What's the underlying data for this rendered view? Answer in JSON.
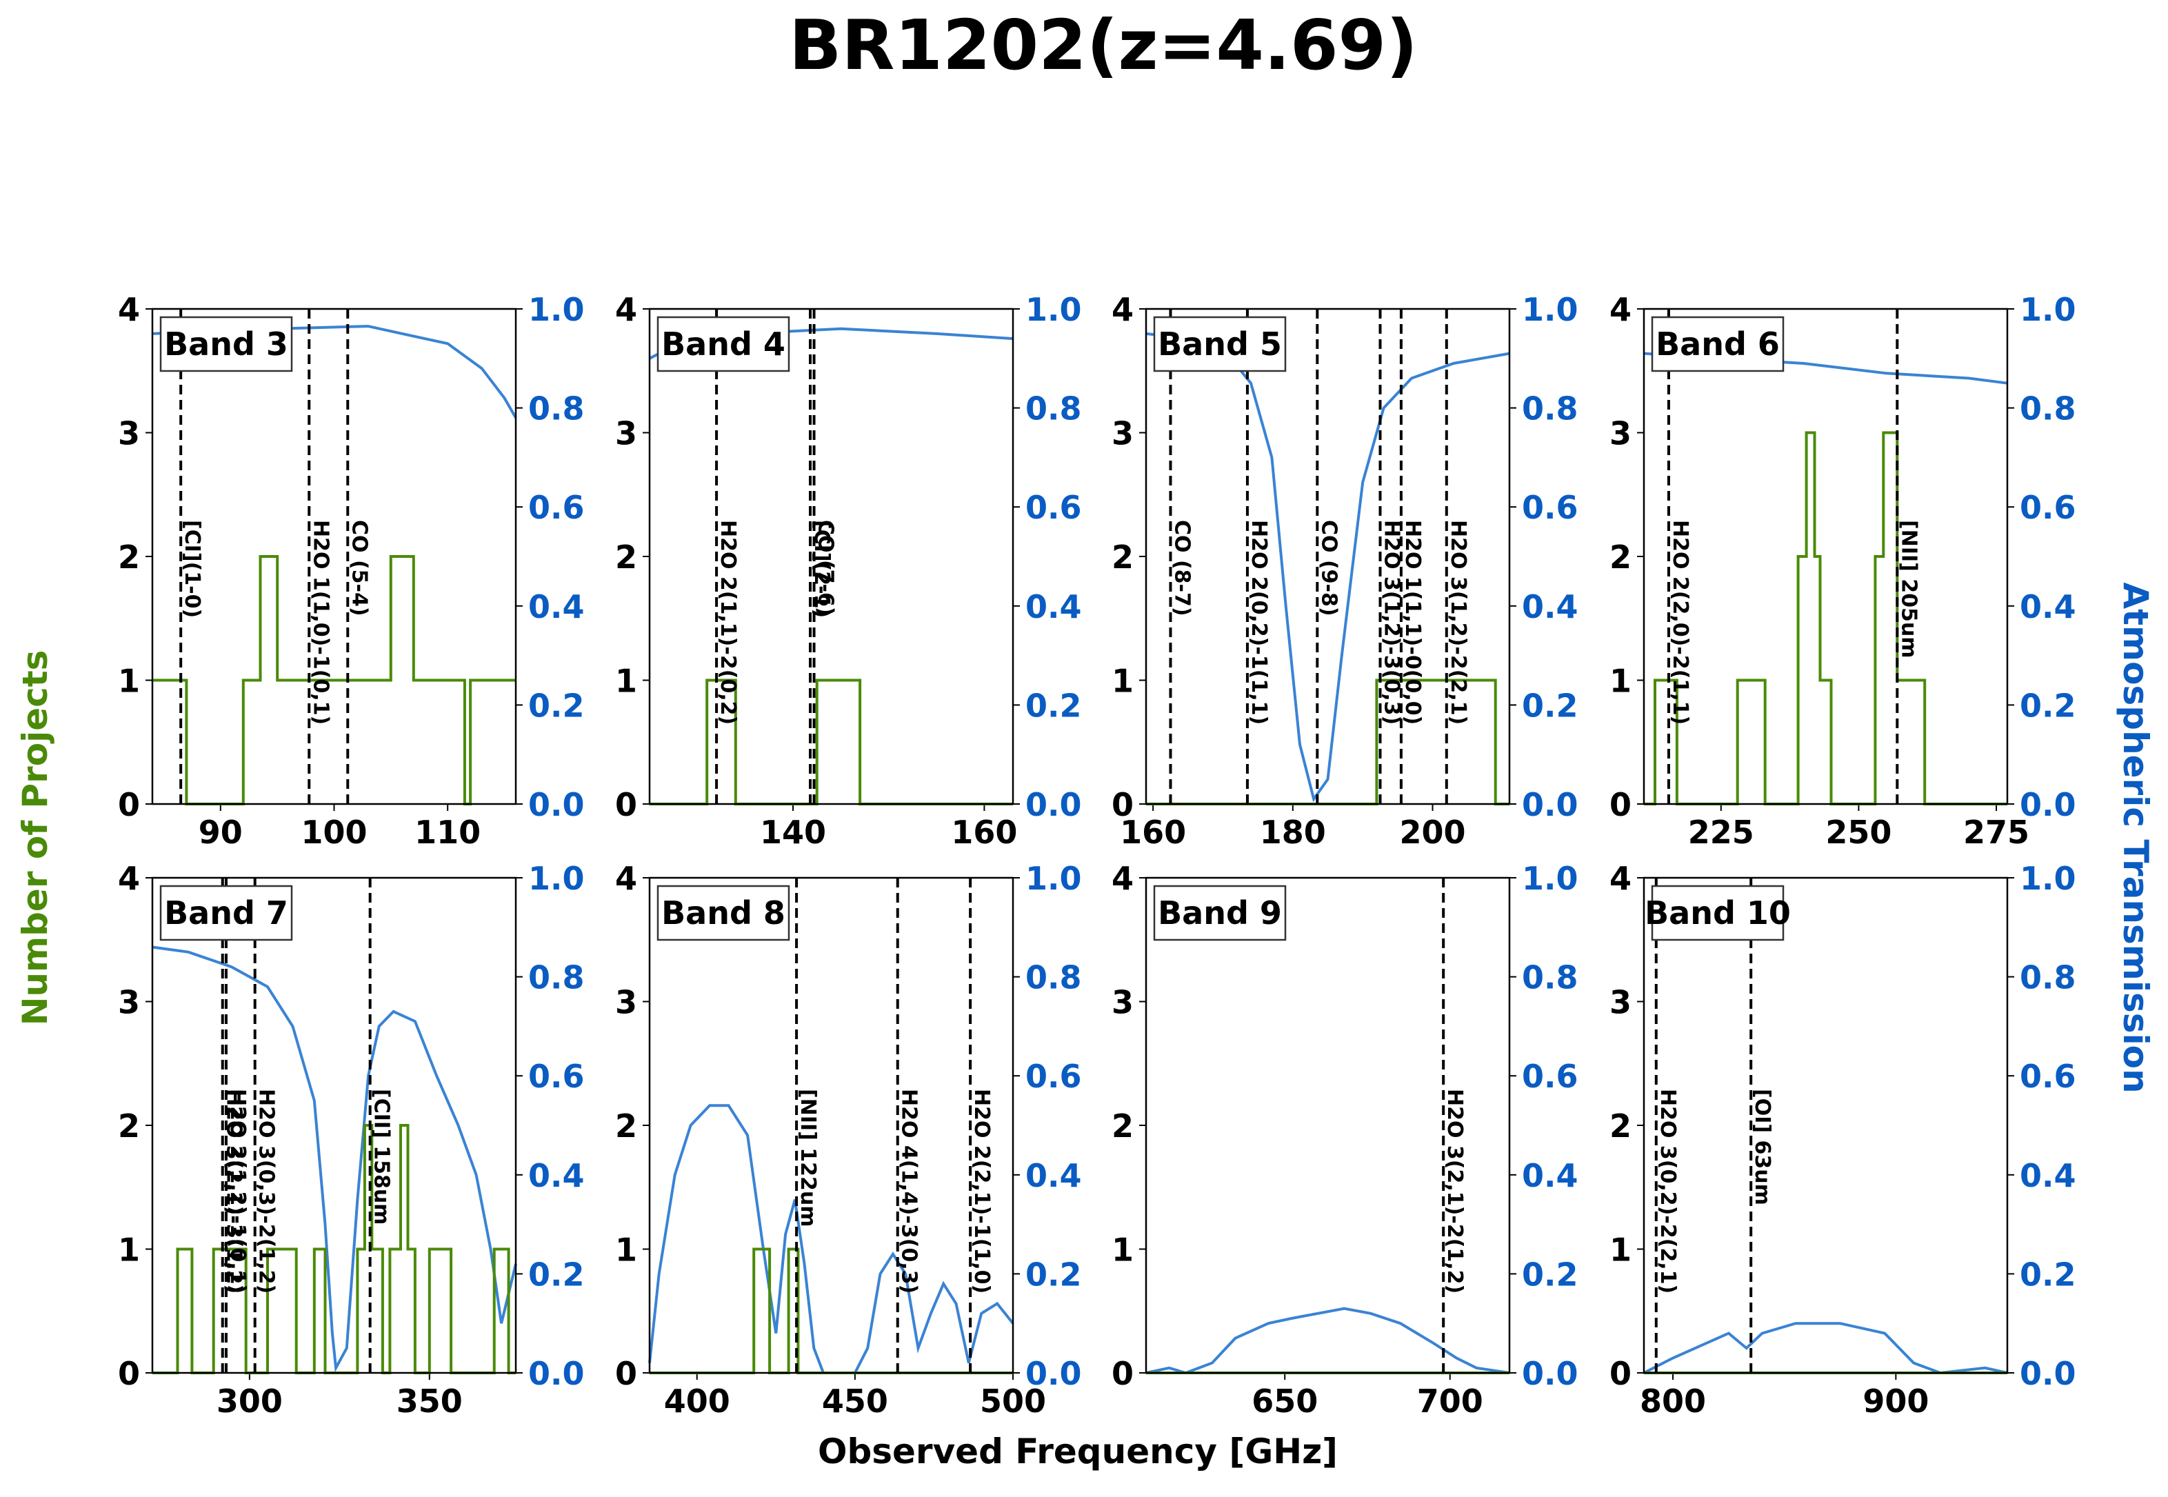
{
  "figure": {
    "title": "BR1202(z=4.69)",
    "xlabel": "Observed Frequency [GHz]",
    "ylabel_left": "Number of Projects",
    "ylabel_right": "Atmospheric Transmission",
    "colors": {
      "projects": "#4a8a08",
      "transmission": "#3a83d4",
      "right_axis_text": "#0a5cc2",
      "lines": "#000000"
    }
  },
  "chart_data": [
    {
      "type": "line",
      "band": "Band 3",
      "xlim": [
        84,
        116
      ],
      "ylim": [
        0,
        4
      ],
      "ylim_right": [
        0,
        1.0
      ],
      "xticks": [
        90,
        100,
        110
      ],
      "projects": [
        [
          84,
          1
        ],
        [
          87,
          1
        ],
        [
          87,
          0
        ],
        [
          92,
          0
        ],
        [
          92,
          1
        ],
        [
          93.5,
          1
        ],
        [
          93.5,
          2
        ],
        [
          95,
          2
        ],
        [
          95,
          1
        ],
        [
          105,
          1
        ],
        [
          105,
          2
        ],
        [
          107,
          2
        ],
        [
          107,
          1
        ],
        [
          111.5,
          1
        ],
        [
          111.5,
          0
        ],
        [
          112,
          0
        ],
        [
          112,
          1
        ],
        [
          116,
          1
        ]
      ],
      "transmission": [
        [
          84,
          0.95
        ],
        [
          95,
          0.96
        ],
        [
          103,
          0.965
        ],
        [
          106,
          0.95
        ],
        [
          110,
          0.93
        ],
        [
          113,
          0.88
        ],
        [
          115,
          0.82
        ],
        [
          116,
          0.78
        ]
      ],
      "lines": [
        {
          "x": 86.5,
          "label": "[CI](1-0)"
        },
        {
          "x": 97.8,
          "label": "H2O 1(1,0)-1(0,1)"
        },
        {
          "x": 101.2,
          "label": "CO (5-4)"
        }
      ]
    },
    {
      "type": "line",
      "band": "Band 4",
      "xlim": [
        125,
        163
      ],
      "ylim": [
        0,
        4
      ],
      "ylim_right": [
        0,
        1.0
      ],
      "xticks": [
        140,
        160
      ],
      "projects": [
        [
          125,
          0
        ],
        [
          131,
          0
        ],
        [
          131,
          1
        ],
        [
          134,
          1
        ],
        [
          134,
          0
        ],
        [
          142.5,
          0
        ],
        [
          142.5,
          1
        ],
        [
          147,
          1
        ],
        [
          147,
          0
        ],
        [
          163,
          0
        ]
      ],
      "transmission": [
        [
          125,
          0.9
        ],
        [
          128,
          0.93
        ],
        [
          135,
          0.95
        ],
        [
          145,
          0.96
        ],
        [
          155,
          0.95
        ],
        [
          163,
          0.94
        ]
      ],
      "lines": [
        {
          "x": 132.0,
          "label": "H2O 2(1,1)-2(0,2)"
        },
        {
          "x": 141.8,
          "label": "[CI](2-1)"
        },
        {
          "x": 142.2,
          "label": "CO (7-6)"
        }
      ]
    },
    {
      "type": "line",
      "band": "Band 5",
      "xlim": [
        159,
        211
      ],
      "ylim": [
        0,
        4
      ],
      "ylim_right": [
        0,
        1.0
      ],
      "xticks": [
        160,
        180,
        200
      ],
      "projects": [
        [
          159,
          0
        ],
        [
          192,
          0
        ],
        [
          192,
          1
        ],
        [
          209,
          1
        ],
        [
          209,
          0
        ],
        [
          211,
          0
        ]
      ],
      "transmission": [
        [
          159,
          0.95
        ],
        [
          165,
          0.94
        ],
        [
          170,
          0.92
        ],
        [
          174,
          0.85
        ],
        [
          177,
          0.7
        ],
        [
          179,
          0.4
        ],
        [
          181,
          0.12
        ],
        [
          183,
          0.01
        ],
        [
          185,
          0.05
        ],
        [
          187,
          0.3
        ],
        [
          190,
          0.65
        ],
        [
          193,
          0.8
        ],
        [
          197,
          0.86
        ],
        [
          203,
          0.89
        ],
        [
          211,
          0.91
        ]
      ],
      "lines": [
        {
          "x": 162.5,
          "label": "CO (8-7)"
        },
        {
          "x": 173.5,
          "label": "H2O 2(0,2)-1(1,1)"
        },
        {
          "x": 183.5,
          "label": "CO (9-8)"
        },
        {
          "x": 192.5,
          "label": "H2O 3(1,2)-3(0,3)"
        },
        {
          "x": 195.5,
          "label": "H2O 1(1,1)-0(0,0)"
        },
        {
          "x": 202.0,
          "label": "H2O 3(1,2)-2(2,1)"
        }
      ]
    },
    {
      "type": "line",
      "band": "Band 6",
      "xlim": [
        211,
        277
      ],
      "ylim": [
        0,
        4
      ],
      "ylim_right": [
        0,
        1.0
      ],
      "xticks": [
        225,
        250,
        275
      ],
      "projects": [
        [
          211,
          0
        ],
        [
          213,
          0
        ],
        [
          213,
          1
        ],
        [
          217,
          1
        ],
        [
          217,
          0
        ],
        [
          228,
          0
        ],
        [
          228,
          1
        ],
        [
          233,
          1
        ],
        [
          233,
          0
        ],
        [
          239,
          0
        ],
        [
          239,
          2
        ],
        [
          240.5,
          2
        ],
        [
          240.5,
          3
        ],
        [
          242,
          3
        ],
        [
          242,
          2
        ],
        [
          243,
          2
        ],
        [
          243,
          1
        ],
        [
          245,
          1
        ],
        [
          245,
          0
        ],
        [
          253,
          0
        ],
        [
          253,
          2
        ],
        [
          254.5,
          2
        ],
        [
          254.5,
          3
        ],
        [
          257,
          3
        ],
        [
          257,
          1
        ],
        [
          262,
          1
        ],
        [
          262,
          0
        ],
        [
          277,
          0
        ]
      ],
      "transmission": [
        [
          211,
          0.91
        ],
        [
          225,
          0.9
        ],
        [
          240,
          0.89
        ],
        [
          255,
          0.87
        ],
        [
          270,
          0.86
        ],
        [
          277,
          0.85
        ]
      ],
      "lines": [
        {
          "x": 215.5,
          "label": "H2O 2(2,0)-2(1,1)"
        },
        {
          "x": 257.0,
          "label": "[NII] 205um"
        }
      ]
    },
    {
      "type": "line",
      "band": "Band 7",
      "xlim": [
        273,
        374
      ],
      "ylim": [
        0,
        4
      ],
      "ylim_right": [
        0,
        1.0
      ],
      "xticks": [
        300,
        350
      ],
      "projects": [
        [
          273,
          0
        ],
        [
          280,
          0
        ],
        [
          280,
          1
        ],
        [
          284,
          1
        ],
        [
          284,
          0
        ],
        [
          290,
          0
        ],
        [
          290,
          1
        ],
        [
          299,
          1
        ],
        [
          299,
          0
        ],
        [
          305,
          0
        ],
        [
          305,
          1
        ],
        [
          313,
          1
        ],
        [
          313,
          0
        ],
        [
          318,
          0
        ],
        [
          318,
          1
        ],
        [
          321,
          1
        ],
        [
          321,
          0
        ],
        [
          330,
          0
        ],
        [
          330,
          1
        ],
        [
          332,
          1
        ],
        [
          332,
          2
        ],
        [
          334,
          2
        ],
        [
          334,
          1
        ],
        [
          337,
          1
        ],
        [
          337,
          0
        ],
        [
          339,
          0
        ],
        [
          339,
          1
        ],
        [
          342,
          1
        ],
        [
          342,
          2
        ],
        [
          344,
          2
        ],
        [
          344,
          1
        ],
        [
          346,
          1
        ],
        [
          346,
          0
        ],
        [
          350,
          0
        ],
        [
          350,
          1
        ],
        [
          356,
          1
        ],
        [
          356,
          0
        ],
        [
          368,
          0
        ],
        [
          368,
          1
        ],
        [
          372,
          1
        ],
        [
          372,
          0
        ],
        [
          374,
          0
        ]
      ],
      "transmission": [
        [
          273,
          0.86
        ],
        [
          283,
          0.85
        ],
        [
          295,
          0.82
        ],
        [
          305,
          0.78
        ],
        [
          312,
          0.7
        ],
        [
          318,
          0.55
        ],
        [
          321,
          0.3
        ],
        [
          323,
          0.08
        ],
        [
          324,
          0.01
        ],
        [
          327,
          0.05
        ],
        [
          330,
          0.35
        ],
        [
          333,
          0.6
        ],
        [
          336,
          0.7
        ],
        [
          340,
          0.73
        ],
        [
          346,
          0.71
        ],
        [
          352,
          0.6
        ],
        [
          358,
          0.5
        ],
        [
          363,
          0.4
        ],
        [
          367,
          0.25
        ],
        [
          370,
          0.1
        ],
        [
          374,
          0.22
        ]
      ],
      "lines": [
        {
          "x": 292.5,
          "label": "H2O 3(2,1)-3(1,2)"
        },
        {
          "x": 293.5,
          "label": "H2O 2(1,2)-1(0,1)"
        },
        {
          "x": 301.5,
          "label": "H2O 3(0,3)-2(1,2)"
        },
        {
          "x": 333.5,
          "label": "[CII] 158um"
        }
      ]
    },
    {
      "type": "line",
      "band": "Band 8",
      "xlim": [
        385,
        500
      ],
      "ylim": [
        0,
        4
      ],
      "ylim_right": [
        0,
        1.0
      ],
      "xticks": [
        400,
        450,
        500
      ],
      "projects": [
        [
          385,
          0
        ],
        [
          418,
          0
        ],
        [
          418,
          1
        ],
        [
          423,
          1
        ],
        [
          423,
          0
        ],
        [
          429,
          0
        ],
        [
          429,
          1
        ],
        [
          432,
          1
        ],
        [
          432,
          0
        ],
        [
          500,
          0
        ]
      ],
      "transmission": [
        [
          385,
          0.02
        ],
        [
          388,
          0.2
        ],
        [
          393,
          0.4
        ],
        [
          398,
          0.5
        ],
        [
          404,
          0.54
        ],
        [
          410,
          0.54
        ],
        [
          416,
          0.48
        ],
        [
          421,
          0.25
        ],
        [
          425,
          0.08
        ],
        [
          428,
          0.28
        ],
        [
          431,
          0.35
        ],
        [
          434,
          0.22
        ],
        [
          437,
          0.05
        ],
        [
          440,
          0.0
        ],
        [
          450,
          0.0
        ],
        [
          454,
          0.05
        ],
        [
          458,
          0.2
        ],
        [
          462,
          0.24
        ],
        [
          466,
          0.2
        ],
        [
          470,
          0.05
        ],
        [
          474,
          0.12
        ],
        [
          478,
          0.18
        ],
        [
          482,
          0.14
        ],
        [
          486,
          0.02
        ],
        [
          490,
          0.12
        ],
        [
          495,
          0.14
        ],
        [
          500,
          0.1
        ]
      ],
      "lines": [
        {
          "x": 431.5,
          "label": "[NII] 122um"
        },
        {
          "x": 463.5,
          "label": "H2O 4(1,4)-3(0,3)"
        },
        {
          "x": 486.5,
          "label": "H2O 2(2,1)-1(1,0)"
        }
      ]
    },
    {
      "type": "line",
      "band": "Band 9",
      "xlim": [
        608,
        718
      ],
      "ylim": [
        0,
        4
      ],
      "ylim_right": [
        0,
        1.0
      ],
      "xticks": [
        650,
        700
      ],
      "projects": [
        [
          608,
          0
        ],
        [
          718,
          0
        ]
      ],
      "transmission": [
        [
          608,
          0.0
        ],
        [
          615,
          0.01
        ],
        [
          620,
          0.0
        ],
        [
          628,
          0.02
        ],
        [
          635,
          0.07
        ],
        [
          645,
          0.1
        ],
        [
          652,
          0.11
        ],
        [
          660,
          0.12
        ],
        [
          668,
          0.13
        ],
        [
          676,
          0.12
        ],
        [
          685,
          0.1
        ],
        [
          695,
          0.06
        ],
        [
          702,
          0.03
        ],
        [
          708,
          0.01
        ],
        [
          718,
          0.0
        ]
      ],
      "lines": [
        {
          "x": 698.0,
          "label": "H2O 3(2,1)-2(1,2)"
        }
      ]
    },
    {
      "type": "line",
      "band": "Band 10",
      "xlim": [
        787,
        950
      ],
      "ylim": [
        0,
        4
      ],
      "ylim_right": [
        0,
        1.0
      ],
      "xticks": [
        800,
        900
      ],
      "projects": [
        [
          787,
          0
        ],
        [
          950,
          0
        ]
      ],
      "transmission": [
        [
          787,
          0.0
        ],
        [
          800,
          0.03
        ],
        [
          815,
          0.06
        ],
        [
          825,
          0.08
        ],
        [
          833,
          0.05
        ],
        [
          840,
          0.08
        ],
        [
          855,
          0.1
        ],
        [
          875,
          0.1
        ],
        [
          895,
          0.08
        ],
        [
          908,
          0.02
        ],
        [
          920,
          0.0
        ],
        [
          940,
          0.01
        ],
        [
          950,
          0.0
        ]
      ],
      "lines": [
        {
          "x": 792.5,
          "label": "H2O 3(0,2)-2(2,1)"
        },
        {
          "x": 835.0,
          "label": "[OI] 63um"
        }
      ]
    }
  ]
}
